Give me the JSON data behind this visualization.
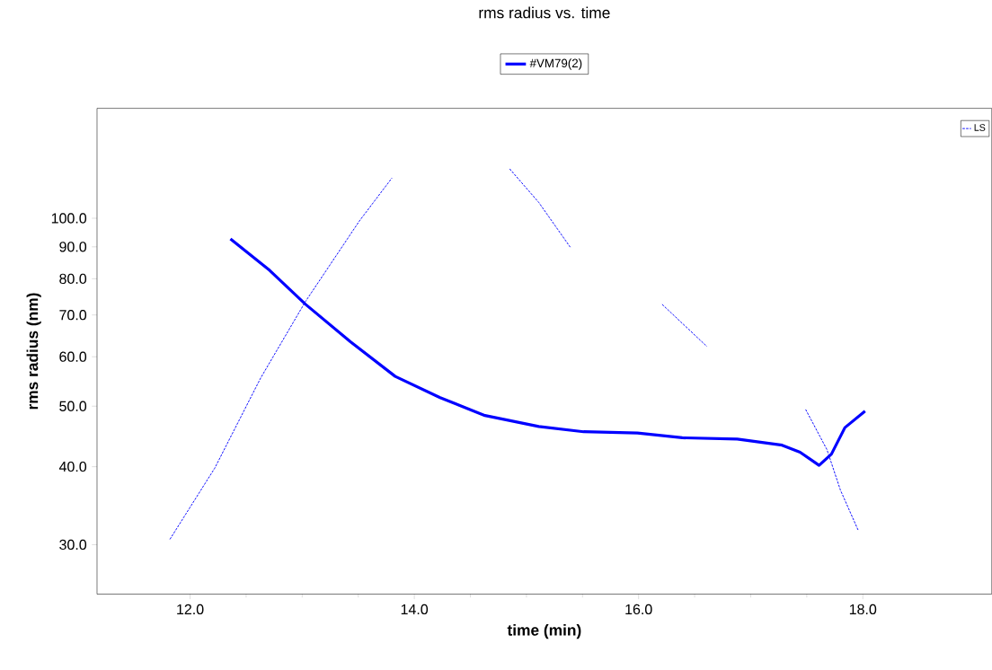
{
  "chart_data": {
    "type": "line",
    "title": "rms radius vs. time",
    "xlabel": "time (min)",
    "ylabel": "rms radius (nm)",
    "log": "y",
    "legend": "top",
    "marker": "none",
    "xlim": [
      11.17,
      19.15
    ],
    "ylim": [
      25,
      150
    ],
    "xticks": [
      {
        "value": 12,
        "label": "12.0"
      },
      {
        "value": 14,
        "label": "14.0"
      },
      {
        "value": 16,
        "label": "16.0"
      },
      {
        "value": 18,
        "label": "18.0"
      }
    ],
    "yticks": [
      {
        "value": 30,
        "label": "30.0"
      },
      {
        "value": 40,
        "label": "40.0"
      },
      {
        "value": 50,
        "label": "50.0"
      },
      {
        "value": 60,
        "label": "60.0"
      },
      {
        "value": 70,
        "label": "70.0"
      },
      {
        "value": 80,
        "label": "80.0"
      },
      {
        "value": 90,
        "label": "90.0"
      },
      {
        "value": 100,
        "label": "100.0"
      }
    ],
    "series": [
      {
        "name": "#VM79(2)",
        "color": "#0000ff",
        "line_style": "solid",
        "x": [
          12.36,
          12.71,
          13.03,
          13.43,
          13.83,
          14.23,
          14.63,
          15.11,
          15.51,
          15.99,
          16.39,
          16.88,
          17.28,
          17.44,
          17.61,
          17.72,
          17.84,
          18.02
        ],
        "values": [
          92.7,
          82.5,
          72.8,
          63.4,
          55.8,
          51.6,
          48.3,
          46.4,
          45.5,
          45.3,
          44.5,
          44.3,
          43.3,
          42.2,
          40.2,
          41.9,
          46.2,
          49.1
        ]
      },
      {
        "name": "LS",
        "color": "#0000ff",
        "line_style": "dashed",
        "x": [
          11.82,
          12.22,
          12.63,
          13.03,
          13.51,
          13.8,
          14.3,
          14.85,
          15.11,
          15.39,
          15.8,
          16.21,
          16.61,
          17.0,
          17.49,
          17.68,
          17.8,
          17.96
        ],
        "values": [
          30.6,
          39.8,
          55.5,
          73.6,
          99,
          116,
          null,
          120,
          106,
          89.9,
          null,
          72.8,
          62.3,
          null,
          49.4,
          42.6,
          36.7,
          31.6
        ]
      }
    ]
  }
}
